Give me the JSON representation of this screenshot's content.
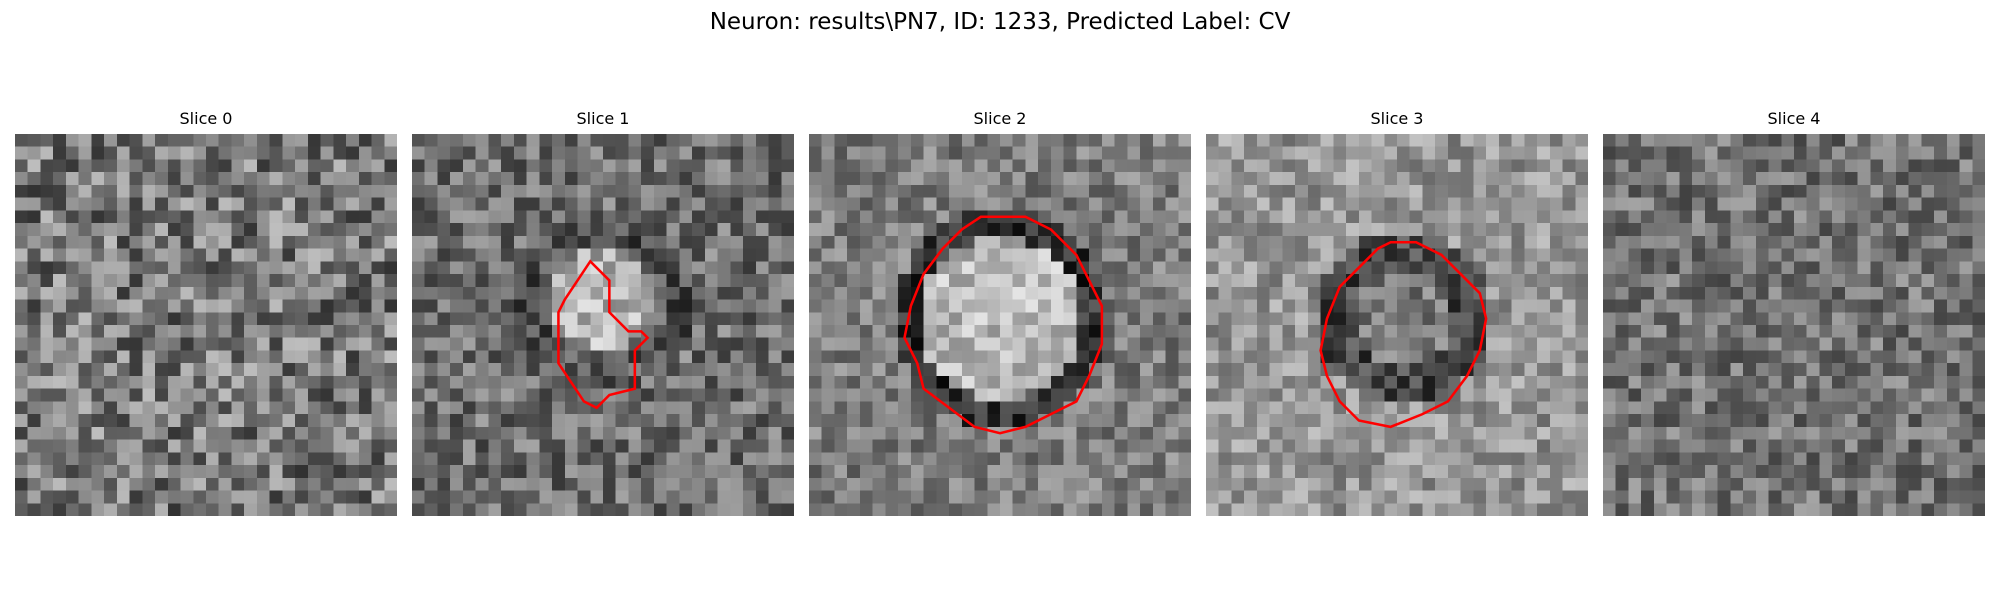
{
  "figure": {
    "title": "Neuron: results\\PN7, ID: 1233, Predicted Label: CV"
  },
  "panels": [
    {
      "title": "Slice 0",
      "contour": null
    },
    {
      "title": "Slice 1",
      "contour": "irregular"
    },
    {
      "title": "Slice 2",
      "contour": "large-circle"
    },
    {
      "title": "Slice 3",
      "contour": "medium-circle"
    },
    {
      "title": "Slice 4",
      "contour": null
    }
  ],
  "colors": {
    "contour": "#ff0000",
    "background": "#ffffff",
    "text": "#000000"
  }
}
